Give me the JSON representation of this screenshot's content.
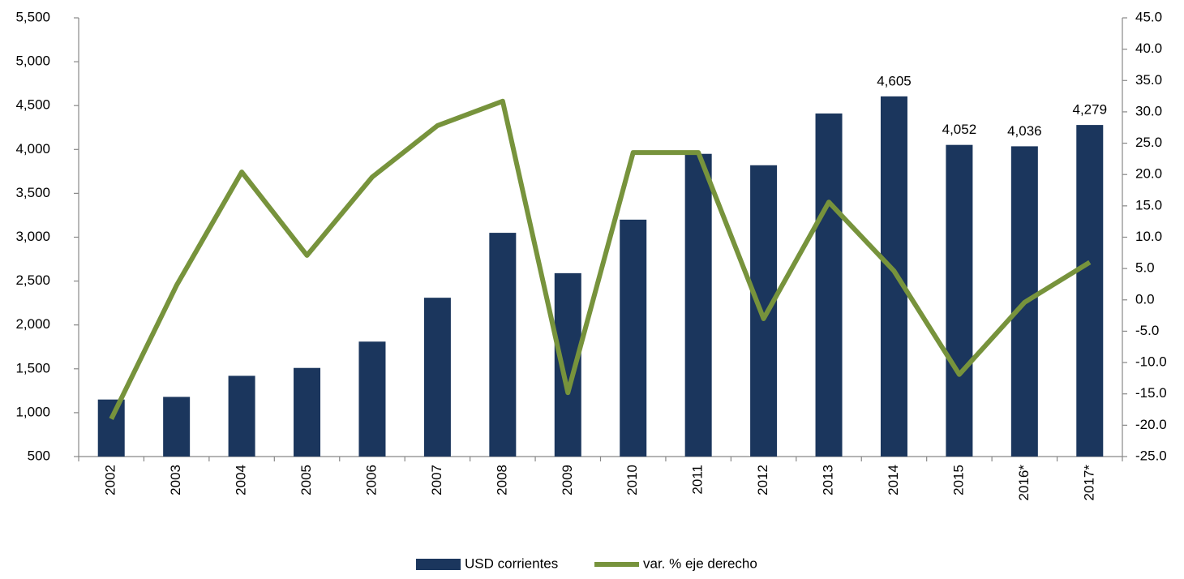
{
  "chart_data": {
    "type": "bar_line",
    "categories": [
      "2002",
      "2003",
      "2004",
      "2005",
      "2006",
      "2007",
      "2008",
      "2009",
      "2010",
      "2011",
      "2012",
      "2013",
      "2014",
      "2015",
      "2016*",
      "2017*"
    ],
    "series": [
      {
        "name": "USD corrientes",
        "type": "bar",
        "color": "#1b365d",
        "values": [
          1150,
          1180,
          1420,
          1510,
          1810,
          2310,
          3050,
          2590,
          3200,
          3950,
          3820,
          4410,
          4605,
          4052,
          4036,
          4279
        ],
        "value_labels": [
          null,
          null,
          null,
          null,
          null,
          null,
          null,
          null,
          null,
          null,
          null,
          null,
          "4,605",
          "4,052",
          "4,036",
          "4,279"
        ]
      },
      {
        "name": "var. % eje derecho",
        "type": "line",
        "axis": "y2",
        "color": "#77933c",
        "values": [
          -19.0,
          2.3,
          20.4,
          7.1,
          19.6,
          27.8,
          31.7,
          -14.8,
          23.5,
          23.5,
          -3.0,
          15.6,
          4.6,
          -11.9,
          -0.4,
          6.0
        ]
      }
    ],
    "ylim": [
      500,
      5500
    ],
    "yticks": [
      500,
      {
        "value": 1000,
        "label": "1,000"
      },
      {
        "value": 1500,
        "label": "1,500"
      },
      {
        "value": 2000,
        "label": "2,000"
      },
      {
        "value": 2500,
        "label": "2,500"
      },
      {
        "value": 3000,
        "label": "3,000"
      },
      {
        "value": 3500,
        "label": "3,500"
      },
      {
        "value": 4000,
        "label": "4,000"
      },
      {
        "value": 4500,
        "label": "4,500"
      },
      {
        "value": 5000,
        "label": "5,000"
      },
      {
        "value": 5500,
        "label": "5,500"
      }
    ],
    "y2lim": [
      -25,
      45
    ],
    "y2ticks": [
      {
        "value": -25,
        "label": "-25.0"
      },
      {
        "value": -20,
        "label": "-20.0"
      },
      {
        "value": -15,
        "label": "-15.0"
      },
      {
        "value": -10,
        "label": "-10.0"
      },
      {
        "value": -5,
        "label": "-5.0"
      },
      {
        "value": 0,
        "label": "0.0"
      },
      {
        "value": 5,
        "label": "5.0"
      },
      {
        "value": 10,
        "label": "10.0"
      },
      {
        "value": 15,
        "label": "15.0"
      },
      {
        "value": 20,
        "label": "20.0"
      },
      {
        "value": 25,
        "label": "25.0"
      },
      {
        "value": 30,
        "label": "30.0"
      },
      {
        "value": 35,
        "label": "35.0"
      },
      {
        "value": 40,
        "label": "40.0"
      },
      {
        "value": 45,
        "label": "45.0"
      }
    ],
    "grid": false,
    "legend": "bottom"
  }
}
